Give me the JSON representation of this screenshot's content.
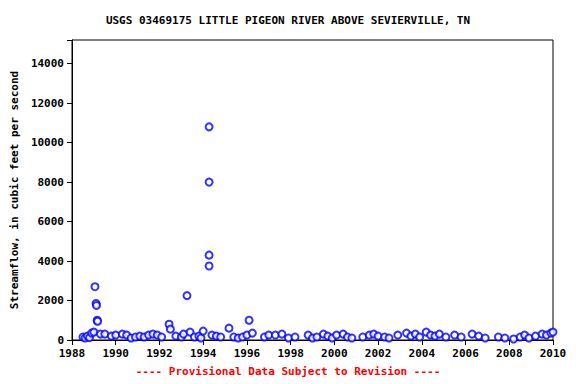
{
  "chart_data": {
    "type": "scatter",
    "title": "USGS 03469175 LITTLE PIGEON RIVER ABOVE SEVIERVILLE, TN",
    "y_label": "Streamflow, in cubic feet per second",
    "annotation": "---- Provisional Data Subject to Revision ----",
    "x": [
      1988.5,
      1988.6,
      1988.7,
      1988.8,
      1988.9,
      1989.0,
      1989.05,
      1989.1,
      1989.12,
      1989.15,
      1989.17,
      1989.3,
      1989.5,
      1989.8,
      1990.0,
      1990.3,
      1990.5,
      1990.7,
      1990.9,
      1991.1,
      1991.3,
      1991.5,
      1991.7,
      1991.9,
      1992.1,
      1992.44,
      1992.5,
      1992.75,
      1993.0,
      1993.1,
      1993.26,
      1993.4,
      1993.6,
      1993.8,
      1993.9,
      1994.0,
      1994.27,
      1994.27,
      1994.27,
      1994.27,
      1994.4,
      1994.6,
      1994.8,
      1995.18,
      1995.4,
      1995.6,
      1995.8,
      1996.0,
      1996.1,
      1996.25,
      1996.8,
      1997.0,
      1997.3,
      1997.6,
      1997.9,
      1998.2,
      1998.8,
      1999.0,
      1999.2,
      1999.5,
      1999.7,
      1999.9,
      2000.1,
      2000.4,
      2000.6,
      2000.8,
      2001.3,
      2001.6,
      2001.8,
      2002.0,
      2002.3,
      2002.5,
      2002.9,
      2003.3,
      2003.5,
      2003.7,
      2003.9,
      2004.2,
      2004.4,
      2004.6,
      2004.8,
      2005.1,
      2005.5,
      2005.8,
      2006.3,
      2006.6,
      2006.9,
      2007.5,
      2007.8,
      2008.2,
      2008.5,
      2008.7,
      2008.9,
      2009.2,
      2009.5,
      2009.7,
      2009.9,
      2010.0
    ],
    "values": [
      150,
      100,
      200,
      120,
      350,
      400,
      2700,
      1850,
      1750,
      1000,
      950,
      300,
      300,
      200,
      250,
      300,
      250,
      100,
      150,
      200,
      150,
      250,
      300,
      250,
      150,
      800,
      550,
      200,
      150,
      300,
      2250,
      400,
      150,
      200,
      100,
      450,
      10800,
      8000,
      4300,
      3750,
      250,
      200,
      150,
      600,
      150,
      100,
      150,
      250,
      1000,
      350,
      150,
      250,
      250,
      300,
      100,
      150,
      250,
      100,
      150,
      300,
      200,
      100,
      250,
      300,
      150,
      100,
      150,
      250,
      300,
      200,
      150,
      100,
      250,
      350,
      200,
      300,
      150,
      400,
      250,
      200,
      300,
      150,
      250,
      150,
      300,
      200,
      100,
      150,
      100,
      50,
      150,
      250,
      100,
      200,
      300,
      250,
      350,
      400
    ],
    "color": "#0000ff",
    "marker": "open_circle",
    "xlim": [
      1988,
      2010
    ],
    "xticks": [
      1988,
      1990,
      1992,
      1994,
      1996,
      1998,
      2000,
      2002,
      2004,
      2006,
      2008,
      2010
    ],
    "ylim": [
      0,
      15200
    ],
    "yticks": [
      0,
      2000,
      4000,
      6000,
      8000,
      10000,
      12000,
      14000
    ],
    "grid": false
  }
}
